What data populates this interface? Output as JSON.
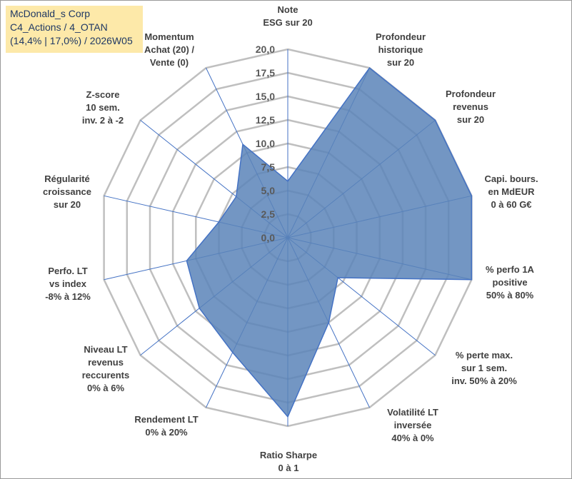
{
  "info": {
    "line1": "McDonald_s Corp",
    "line2": "C4_Actions / 4_OTAN",
    "line3": "(14,4% | 17,0%) / 2026W05"
  },
  "colors": {
    "fill": "#5b84b8",
    "stroke": "#4472c4",
    "grid": "#bfbfbf",
    "infoBg": "#fde9a9",
    "infoText": "#1f3864"
  },
  "chart_data": {
    "type": "radar",
    "title": "",
    "rmin": 0,
    "rmax": 20,
    "ticks": [
      "0,0",
      "2,5",
      "5,0",
      "7,5",
      "10,0",
      "12,5",
      "15,0",
      "17,5",
      "20,0"
    ],
    "axes": [
      [
        "Note",
        "ESG sur 20"
      ],
      [
        "Profondeur",
        "historique",
        "sur 20"
      ],
      [
        "Profondeur",
        "revenus",
        "sur 20"
      ],
      [
        "Capi. bours.",
        "en MdEUR",
        "0 à 60 G€"
      ],
      [
        "% perfo 1A",
        "positive",
        "50% à 80%"
      ],
      [
        "% perte max.",
        "sur 1 sem.",
        "inv. 50% à 20%"
      ],
      [
        "Volatilité LT",
        "inversée",
        "40% à 0%"
      ],
      [
        "Ratio Sharpe",
        "0 à 1"
      ],
      [
        "Rendement LT",
        "0% à 20%"
      ],
      [
        "Niveau LT",
        "revenus",
        "reccurents",
        "0% à 6%"
      ],
      [
        "Perfo. LT",
        "vs index",
        "-8% à 12%"
      ],
      [
        "Régularité",
        "croissance",
        "sur 20"
      ],
      [
        "Z-score",
        "10 sem.",
        "inv. 2 à -2"
      ],
      [
        "Momentum",
        "Achat (20) /",
        "Vente (0)"
      ]
    ],
    "series": [
      {
        "name": "McDonald_s Corp",
        "values": [
          6.0,
          20.0,
          20.0,
          20.0,
          20.0,
          6.8,
          10.0,
          19.0,
          13.5,
          12.0,
          11.0,
          7.5,
          7.0,
          11.0
        ]
      }
    ]
  }
}
